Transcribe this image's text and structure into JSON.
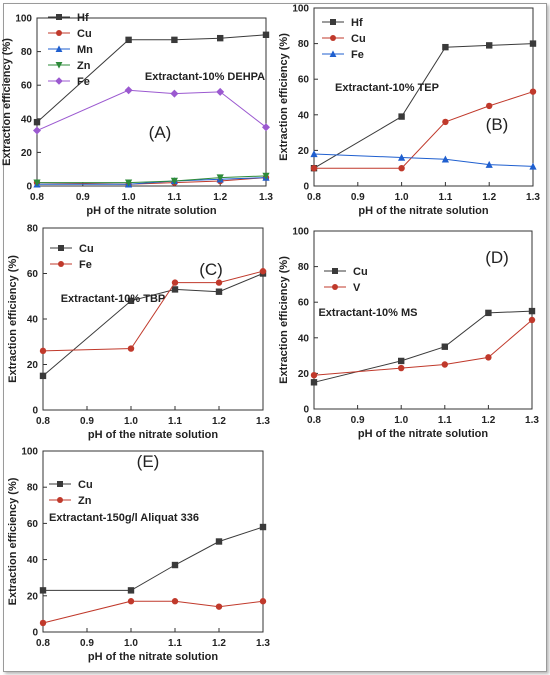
{
  "chart_data": [
    {
      "type": "line",
      "panel_label": "(A)",
      "annotation": "Extractant-10% DEHPA",
      "ylabel": "Extraction efficiency (%)",
      "xlabel": "pH of the nitrate solution",
      "xlim": [
        0.8,
        1.3
      ],
      "ylim": [
        0,
        100
      ],
      "x_ticks": [
        "0.8",
        "0.9",
        "1.0",
        "1.1",
        "1.2",
        "1.3"
      ],
      "y_ticks": [
        "0",
        "20",
        "40",
        "60",
        "80",
        "100"
      ],
      "legend_position": "top-left",
      "series": [
        {
          "name": "Hf",
          "color": "#3a3a3a",
          "marker": "square",
          "x": [
            0.8,
            1.0,
            1.1,
            1.2,
            1.3
          ],
          "values": [
            38,
            87,
            87,
            88,
            90
          ]
        },
        {
          "name": "Cu",
          "color": "#c0392b",
          "marker": "circle",
          "x": [
            0.8,
            1.0,
            1.1,
            1.2,
            1.3
          ],
          "values": [
            2,
            1,
            2,
            3,
            5
          ]
        },
        {
          "name": "Mn",
          "color": "#1f5fcf",
          "marker": "triangle-up",
          "x": [
            0.8,
            1.0,
            1.1,
            1.2,
            1.3
          ],
          "values": [
            1,
            1,
            3,
            4,
            5
          ]
        },
        {
          "name": "Zn",
          "color": "#2e8b3a",
          "marker": "triangle-down",
          "x": [
            0.8,
            1.0,
            1.1,
            1.2,
            1.3
          ],
          "values": [
            2,
            2,
            3,
            5,
            6
          ]
        },
        {
          "name": "Fe",
          "color": "#9b59d0",
          "marker": "diamond",
          "x": [
            0.8,
            1.0,
            1.1,
            1.2,
            1.3
          ],
          "values": [
            33,
            57,
            55,
            56,
            35
          ]
        }
      ]
    },
    {
      "type": "line",
      "panel_label": "(B)",
      "annotation": "Extractant-10% TEP",
      "ylabel": "Extraction efficiency (%)",
      "xlabel": "pH of the nitrate solution",
      "xlim": [
        0.8,
        1.3
      ],
      "ylim": [
        0,
        100
      ],
      "x_ticks": [
        "0.8",
        "0.9",
        "1.0",
        "1.1",
        "1.2",
        "1.3"
      ],
      "y_ticks": [
        "0",
        "20",
        "40",
        "60",
        "80",
        "100"
      ],
      "legend_position": "top-left",
      "series": [
        {
          "name": "Hf",
          "color": "#3a3a3a",
          "marker": "square",
          "x": [
            0.8,
            1.0,
            1.1,
            1.2,
            1.3
          ],
          "values": [
            10,
            39,
            78,
            79,
            80
          ]
        },
        {
          "name": "Cu",
          "color": "#c0392b",
          "marker": "circle",
          "x": [
            0.8,
            1.0,
            1.1,
            1.2,
            1.3
          ],
          "values": [
            10,
            10,
            36,
            45,
            53
          ]
        },
        {
          "name": "Fe",
          "color": "#1f5fcf",
          "marker": "triangle-up",
          "x": [
            0.8,
            1.0,
            1.1,
            1.2,
            1.3
          ],
          "values": [
            18,
            16,
            15,
            12,
            11
          ]
        }
      ]
    },
    {
      "type": "line",
      "panel_label": "(C)",
      "annotation": "Extractant-10% TBP",
      "ylabel": "Extraction efficiency (%)",
      "xlabel": "pH of the nitrate solution",
      "xlim": [
        0.8,
        1.3
      ],
      "ylim": [
        0,
        80
      ],
      "x_ticks": [
        "0.8",
        "0.9",
        "1.0",
        "1.1",
        "1.2",
        "1.3"
      ],
      "y_ticks": [
        "0",
        "20",
        "40",
        "60",
        "80"
      ],
      "legend_position": "top-left",
      "series": [
        {
          "name": "Cu",
          "color": "#3a3a3a",
          "marker": "square",
          "x": [
            0.8,
            1.0,
            1.1,
            1.2,
            1.3
          ],
          "values": [
            15,
            48,
            53,
            52,
            60
          ]
        },
        {
          "name": "Fe",
          "color": "#c0392b",
          "marker": "circle",
          "x": [
            0.8,
            1.0,
            1.1,
            1.2,
            1.3
          ],
          "values": [
            26,
            27,
            56,
            56,
            61
          ]
        }
      ]
    },
    {
      "type": "line",
      "panel_label": "(D)",
      "annotation": "Extractant-10% MS",
      "ylabel": "Extraction efficiency (%)",
      "xlabel": "pH of the nitrate solution",
      "xlim": [
        0.8,
        1.3
      ],
      "ylim": [
        0,
        100
      ],
      "x_ticks": [
        "0.8",
        "0.9",
        "1.0",
        "1.1",
        "1.2",
        "1.3"
      ],
      "y_ticks": [
        "0",
        "20",
        "40",
        "60",
        "80",
        "100"
      ],
      "legend_position": "top-left",
      "series": [
        {
          "name": "Cu",
          "color": "#3a3a3a",
          "marker": "square",
          "x": [
            0.8,
            1.0,
            1.1,
            1.2,
            1.3
          ],
          "values": [
            15,
            27,
            35,
            54,
            55
          ]
        },
        {
          "name": "V",
          "color": "#c0392b",
          "marker": "circle",
          "x": [
            0.8,
            1.0,
            1.1,
            1.2,
            1.3
          ],
          "values": [
            19,
            23,
            25,
            29,
            50
          ]
        }
      ]
    },
    {
      "type": "line",
      "panel_label": "(E)",
      "annotation": "Extractant-150g/l Aliquat 336",
      "ylabel": "Extraction efficiency (%)",
      "xlabel": "pH of the nitrate solution",
      "xlim": [
        0.8,
        1.3
      ],
      "ylim": [
        0,
        100
      ],
      "x_ticks": [
        "0.8",
        "0.9",
        "1.0",
        "1.1",
        "1.2",
        "1.3"
      ],
      "y_ticks": [
        "0",
        "20",
        "40",
        "60",
        "80",
        "100"
      ],
      "legend_position": "top-left",
      "series": [
        {
          "name": "Cu",
          "color": "#3a3a3a",
          "marker": "square",
          "x": [
            0.8,
            1.0,
            1.1,
            1.2,
            1.3
          ],
          "values": [
            23,
            23,
            37,
            50,
            58
          ]
        },
        {
          "name": "Zn",
          "color": "#c0392b",
          "marker": "circle",
          "x": [
            0.8,
            1.0,
            1.1,
            1.2,
            1.3
          ],
          "values": [
            5,
            17,
            17,
            14,
            17
          ]
        }
      ]
    }
  ]
}
